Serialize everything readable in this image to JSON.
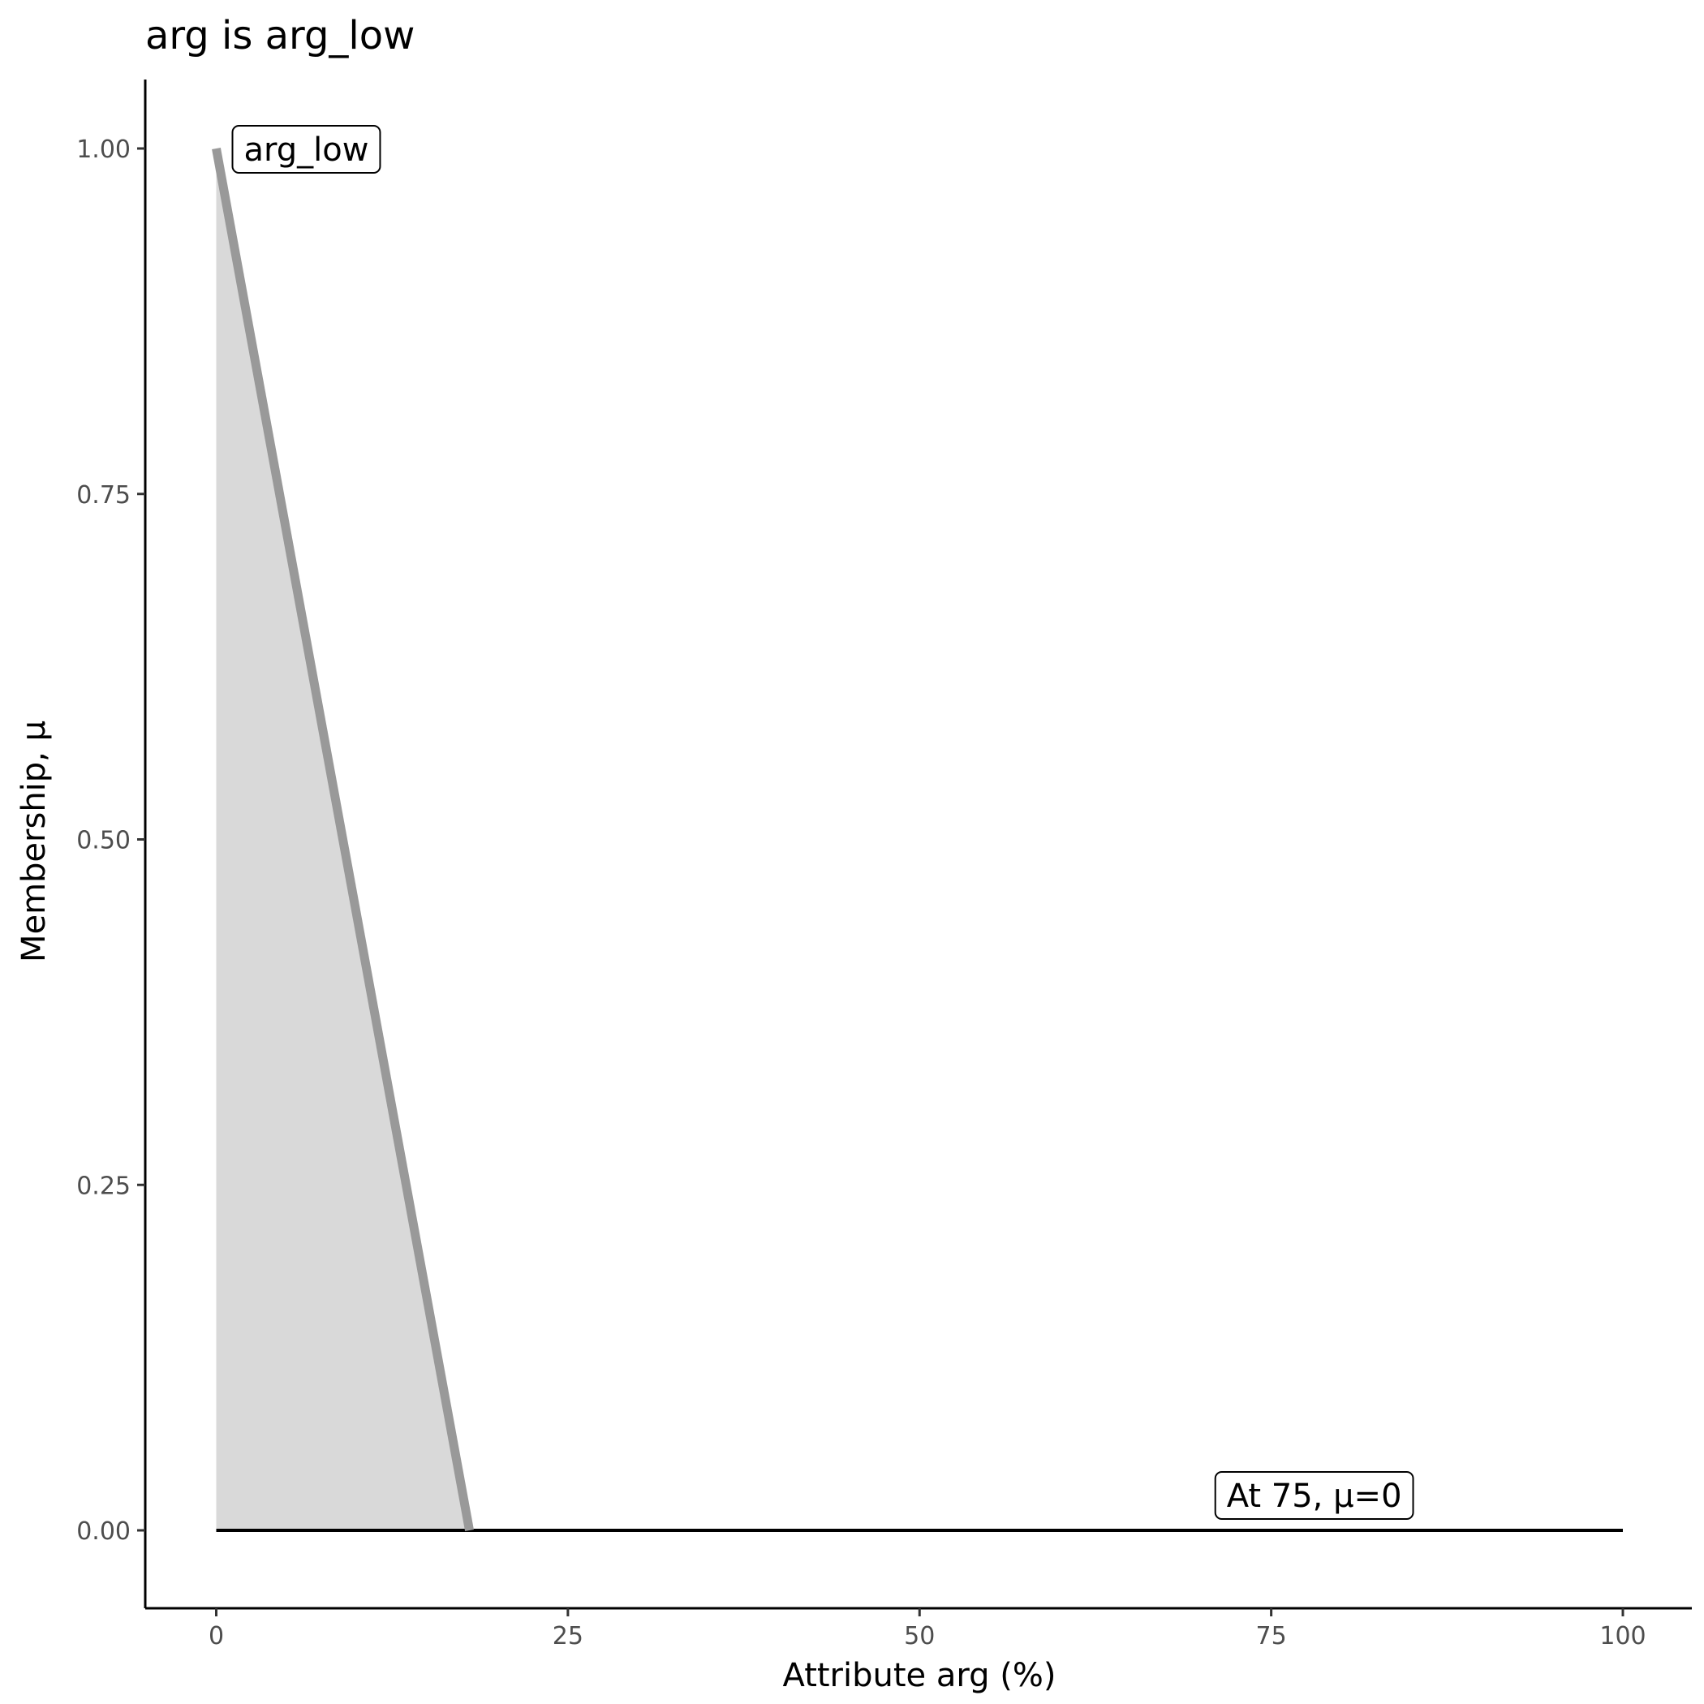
{
  "chart_data": {
    "type": "area",
    "title": "arg is arg_low",
    "xlabel": "Attribute arg (%)",
    "ylabel": "Membership, μ",
    "xlim": [
      -5,
      105
    ],
    "ylim": [
      -0.05,
      1.05
    ],
    "x_ticks": [
      0,
      25,
      50,
      75,
      100
    ],
    "x_tick_labels": [
      "0",
      "25",
      "50",
      "75",
      "100"
    ],
    "y_ticks": [
      0,
      0.25,
      0.5,
      0.75,
      1
    ],
    "y_tick_labels": [
      "0.00",
      "0.25",
      "0.50",
      "0.75",
      "1.00"
    ],
    "series": [
      {
        "x": [
          0,
          18
        ],
        "y": [
          1,
          0
        ],
        "color": "#999999",
        "fill": "#d9d9d9"
      }
    ],
    "baseline": {
      "x": [
        0,
        100
      ],
      "y": [
        0,
        0
      ],
      "color": "#000000"
    },
    "annotations": [
      {
        "text": "arg_low",
        "x": 0,
        "y": 1
      },
      {
        "text": "At 75, μ=0",
        "x": 75,
        "y": 0
      }
    ],
    "grid": false,
    "legend": "none"
  }
}
